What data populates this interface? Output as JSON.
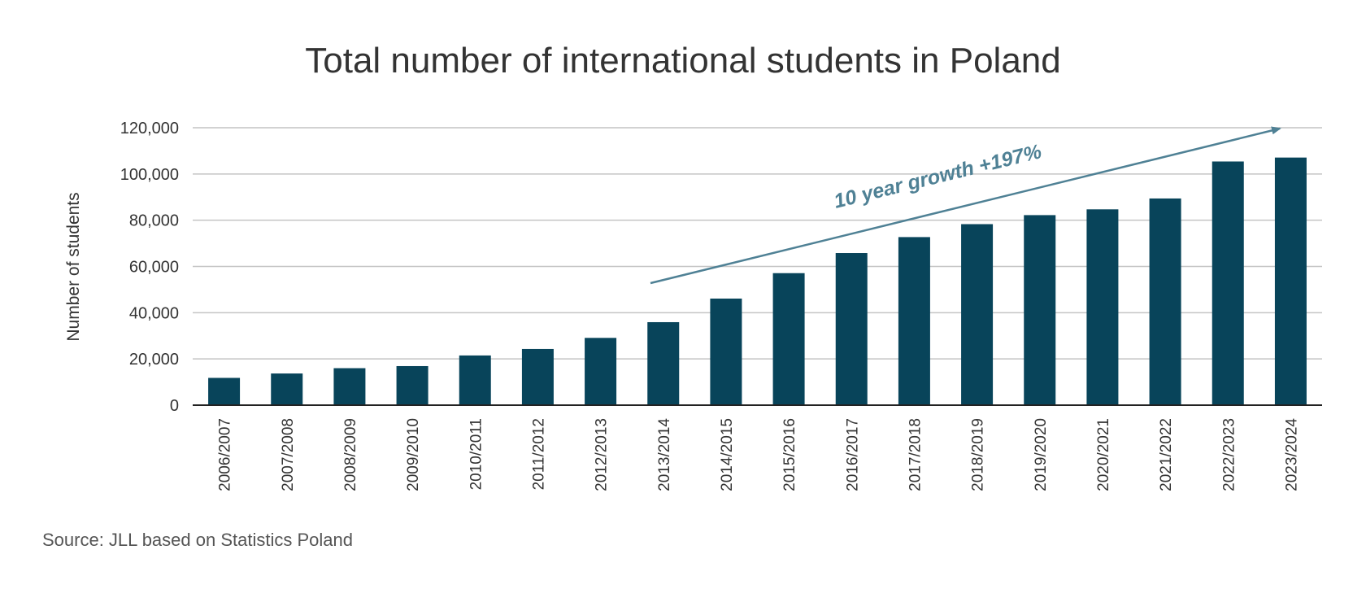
{
  "chart_data": {
    "type": "bar",
    "title": "Total number of international students in Poland",
    "ylabel": "Number of students",
    "xlabel": "",
    "ylim": [
      0,
      120000
    ],
    "yticks": [
      "0",
      "20,000",
      "40,000",
      "60,000",
      "80,000",
      "100,000",
      "120,000"
    ],
    "ytick_values": [
      0,
      20000,
      40000,
      60000,
      80000,
      100000,
      120000
    ],
    "grid": true,
    "categories": [
      "2006/2007",
      "2007/2008",
      "2008/2009",
      "2009/2010",
      "2010/2011",
      "2011/2012",
      "2012/2013",
      "2013/2014",
      "2014/2015",
      "2015/2016",
      "2016/2017",
      "2017/2018",
      "2018/2019",
      "2019/2020",
      "2020/2021",
      "2021/2022",
      "2022/2023",
      "2023/2024"
    ],
    "values": [
      11800,
      13700,
      16000,
      16900,
      21500,
      24300,
      29100,
      35900,
      46100,
      57100,
      65800,
      72700,
      78300,
      82200,
      84700,
      89400,
      105400,
      107100
    ],
    "bar_color": "#08445a",
    "annotation": {
      "text": "10 year growth +197%",
      "color": "#4f8195"
    },
    "source": "Source: JLL based on Statistics Poland"
  }
}
